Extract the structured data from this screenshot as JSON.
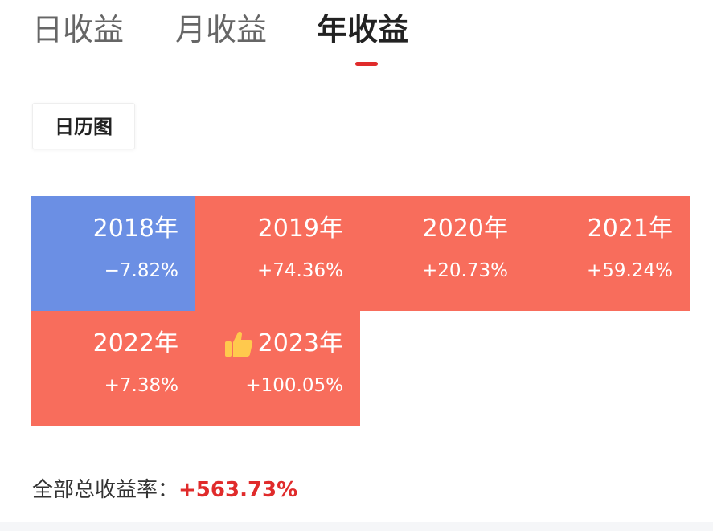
{
  "tabs": {
    "day": "日收益",
    "month": "月收益",
    "year": "年收益",
    "active": "year"
  },
  "calendar_button": "日历图",
  "colors": {
    "gain": "#f86d5c",
    "loss": "#6b8fe4",
    "accent": "#e02b2b"
  },
  "years": [
    {
      "year": "2018年",
      "return": "−7.82%",
      "status": "loss"
    },
    {
      "year": "2019年",
      "return": "+74.36%",
      "status": "gain"
    },
    {
      "year": "2020年",
      "return": "+20.73%",
      "status": "gain"
    },
    {
      "year": "2021年",
      "return": "+59.24%",
      "status": "gain"
    },
    {
      "year": "2022年",
      "return": "+7.38%",
      "status": "gain"
    },
    {
      "year": "2023年",
      "return": "+100.05%",
      "status": "gain",
      "icon": "thumbs-up-icon"
    }
  ],
  "total": {
    "label": "全部总收益率：",
    "value": "+563.73%"
  }
}
